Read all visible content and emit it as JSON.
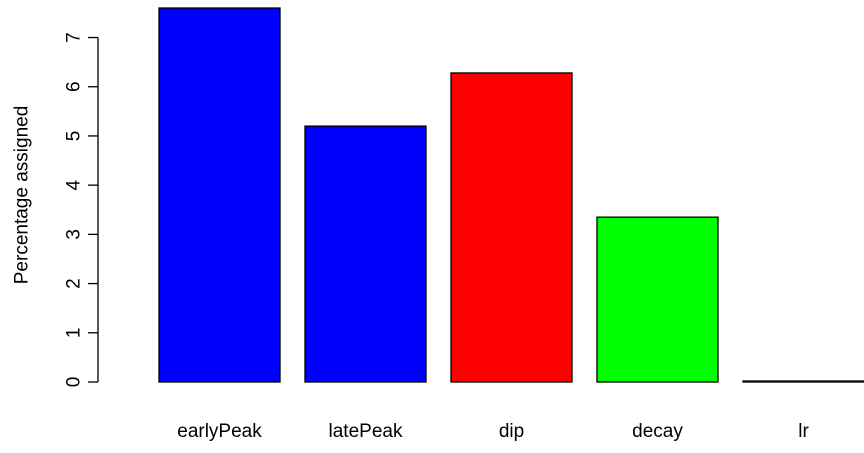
{
  "chart_data": {
    "type": "bar",
    "title": "",
    "xlabel": "",
    "ylabel": "Percentage assigned",
    "ylim": [
      0,
      7.6
    ],
    "yticks": [
      0,
      1,
      2,
      3,
      4,
      5,
      6,
      7
    ],
    "ytick_labels": [
      "0",
      "1",
      "2",
      "3",
      "4",
      "5",
      "6",
      "7"
    ],
    "categories": [
      "earlyPeak",
      "latePeak",
      "dip",
      "decay",
      "lr"
    ],
    "values": [
      7.6,
      5.2,
      6.28,
      3.35,
      0.02
    ],
    "colors": [
      "#0000ff",
      "#0000ff",
      "#ff0000",
      "#00ff00",
      "#000000"
    ],
    "grid": false,
    "legend": "none"
  }
}
